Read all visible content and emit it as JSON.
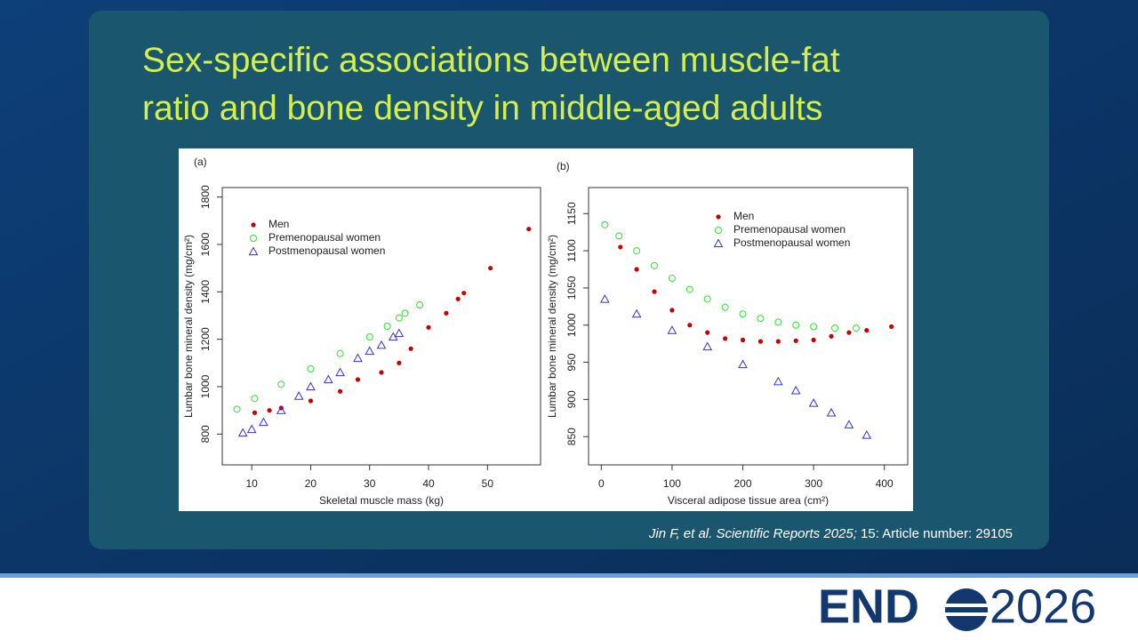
{
  "title": {
    "line1": "Sex-specific associations between muscle-fat",
    "line2": "ratio and bone density in middle-aged adults"
  },
  "citation": {
    "source": "Jin F, et al. Scientific Reports 2025;",
    "detail": " 15: Article number: 29105"
  },
  "logo": {
    "left": "END",
    "right": "2026"
  },
  "chart_data": [
    {
      "type": "scatter",
      "panel_label": "(a)",
      "x_label": "Skeletal muscle mass (kg)",
      "y_label": "Lumbar bone mineral density (mg/cm²)",
      "xlim": [
        5,
        59
      ],
      "ylim": [
        670,
        1840
      ],
      "xticks": [
        10,
        20,
        30,
        40,
        50
      ],
      "yticks": [
        800,
        1000,
        1200,
        1400,
        1600,
        1800
      ],
      "legend": "upper left",
      "series": [
        {
          "name": "Men",
          "color": "#c00000",
          "marker": "circle-filled",
          "x": [
            10.5,
            13,
            15,
            20,
            25,
            28,
            32,
            35,
            37,
            40,
            43,
            45,
            46,
            50.5,
            57
          ],
          "values": [
            890,
            900,
            910,
            940,
            980,
            1030,
            1060,
            1100,
            1160,
            1250,
            1310,
            1370,
            1395,
            1500,
            1665
          ]
        },
        {
          "name": "Premenopausal women",
          "color": "#33dd33",
          "marker": "circle-open",
          "x": [
            7.5,
            10.5,
            15,
            20,
            25,
            30,
            33,
            35,
            36,
            38.5
          ],
          "values": [
            905,
            950,
            1010,
            1075,
            1140,
            1210,
            1255,
            1290,
            1310,
            1345
          ]
        },
        {
          "name": "Postmenopausal women",
          "color": "#3333cc",
          "marker": "triangle-open",
          "x": [
            8.5,
            10,
            12,
            15,
            18,
            20,
            23,
            25,
            28,
            30,
            32,
            34,
            35
          ],
          "values": [
            805,
            820,
            850,
            900,
            960,
            1000,
            1030,
            1060,
            1120,
            1150,
            1175,
            1210,
            1225
          ]
        }
      ]
    },
    {
      "type": "scatter",
      "panel_label": "(b)",
      "x_label": "Visceral adipose tissue area (cm²)",
      "y_label": "Lumbar bone mineral density (mg/cm²)",
      "xlim": [
        -18,
        433
      ],
      "ylim": [
        812,
        1185
      ],
      "xticks": [
        0,
        100,
        200,
        300,
        400
      ],
      "yticks": [
        850,
        900,
        950,
        1000,
        1050,
        1100,
        1150
      ],
      "legend": "upper right",
      "series": [
        {
          "name": "Men",
          "color": "#c00000",
          "marker": "circle-filled",
          "x": [
            27,
            50,
            75,
            100,
            125,
            150,
            175,
            200,
            225,
            250,
            275,
            300,
            325,
            350,
            375,
            410
          ],
          "values": [
            1105,
            1075,
            1045,
            1020,
            1000,
            990,
            982,
            980,
            978,
            978,
            979,
            980,
            985,
            990,
            993,
            998
          ]
        },
        {
          "name": "Premenopausal women",
          "color": "#33dd33",
          "marker": "circle-open",
          "x": [
            5,
            25,
            50,
            75,
            100,
            125,
            150,
            175,
            200,
            225,
            250,
            275,
            300,
            330,
            360
          ],
          "values": [
            1135,
            1120,
            1100,
            1080,
            1063,
            1048,
            1035,
            1024,
            1015,
            1009,
            1004,
            1000,
            998,
            996,
            996
          ]
        },
        {
          "name": "Postmenopausal women",
          "color": "#3333cc",
          "marker": "triangle-open",
          "x": [
            5,
            50,
            100,
            150,
            200,
            250,
            275,
            300,
            325,
            350,
            375
          ],
          "values": [
            1035,
            1015,
            993,
            971,
            947,
            924,
            912,
            895,
            882,
            866,
            852
          ]
        }
      ]
    }
  ]
}
